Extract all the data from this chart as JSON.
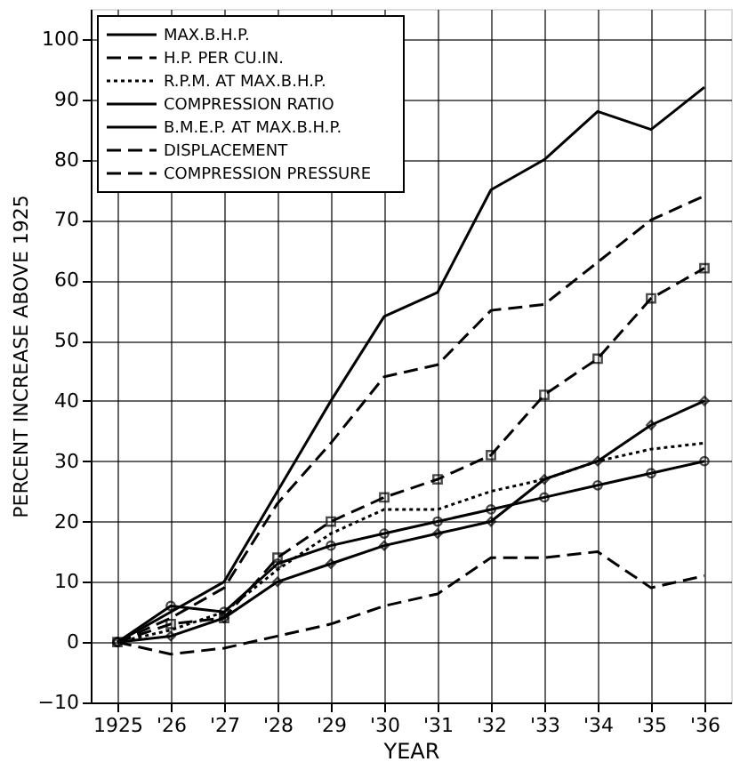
{
  "chart_data": {
    "type": "line",
    "xlabel": "YEAR",
    "ylabel": "PERCENT INCREASE ABOVE 1925",
    "categories": [
      "1925",
      "'26",
      "'27",
      "'28",
      "'29",
      "'30",
      "'31",
      "'32",
      "'33",
      "'34",
      "'35",
      "'36"
    ],
    "ylim": [
      -10,
      105
    ],
    "yticks": [
      -10,
      0,
      10,
      20,
      30,
      40,
      50,
      60,
      70,
      80,
      90,
      100
    ],
    "grid": true,
    "legend": "top left",
    "series": [
      {
        "name": "MAX.B.H.P.",
        "color": "#000000",
        "line_style": "solid",
        "marker": "none",
        "values": [
          0,
          5,
          10,
          25,
          40,
          54,
          58,
          75,
          80,
          88,
          85,
          92
        ]
      },
      {
        "name": "H.P. PER CU.IN.",
        "color": "#000000",
        "line_style": "dashed",
        "marker": "none",
        "values": [
          0,
          4,
          9,
          23,
          33,
          44,
          46,
          55,
          56,
          63,
          70,
          74
        ]
      },
      {
        "name": "R.P.M. AT MAX.B.H.P.",
        "color": "#000000",
        "line_style": "dotted",
        "marker": "none",
        "values": [
          0,
          2,
          5,
          12,
          18,
          22,
          22,
          25,
          27,
          30,
          32,
          33
        ]
      },
      {
        "name": "COMPRESSION RATIO",
        "color": "#000000",
        "line_style": "solid",
        "marker": "diamond",
        "values": [
          0,
          1,
          4,
          10,
          13,
          16,
          18,
          20,
          27,
          30,
          36,
          40
        ]
      },
      {
        "name": "B.M.E.P. AT MAX.B.H.P.",
        "color": "#000000",
        "line_style": "solid",
        "marker": "circle",
        "values": [
          0,
          6,
          5,
          13,
          16,
          18,
          20,
          22,
          24,
          26,
          28,
          30
        ]
      },
      {
        "name": "DISPLACEMENT",
        "color": "#000000",
        "line_style": "dashed",
        "marker": "none",
        "values": [
          0,
          -2,
          -1,
          1,
          3,
          6,
          8,
          14,
          14,
          15,
          9,
          11
        ]
      },
      {
        "name": "COMPRESSION PRESSURE",
        "color": "#000000",
        "line_style": "dashed",
        "marker": "square",
        "values": [
          0,
          3,
          4,
          14,
          20,
          24,
          27,
          31,
          41,
          47,
          57,
          62
        ]
      }
    ]
  }
}
